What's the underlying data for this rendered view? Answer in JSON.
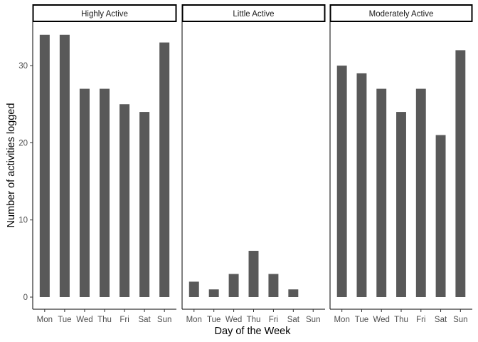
{
  "chart_data": {
    "type": "bar",
    "facets": [
      "Highly Active",
      "Little Active",
      "Moderately Active"
    ],
    "categories": [
      "Mon",
      "Tue",
      "Wed",
      "Thu",
      "Fri",
      "Sat",
      "Sun"
    ],
    "series": [
      {
        "facet": "Highly Active",
        "values": [
          34,
          34,
          27,
          27,
          25,
          24,
          33
        ]
      },
      {
        "facet": "Little Active",
        "values": [
          2,
          1,
          3,
          6,
          3,
          1,
          0
        ]
      },
      {
        "facet": "Moderately Active",
        "values": [
          30,
          29,
          27,
          24,
          27,
          21,
          32
        ]
      }
    ],
    "xlabel": "Day of the Week",
    "ylabel": "Number of activities logged",
    "ylim": [
      0,
      35
    ],
    "yticks": [
      0,
      10,
      20,
      30
    ],
    "bar_color": "#595959",
    "grid": false
  }
}
